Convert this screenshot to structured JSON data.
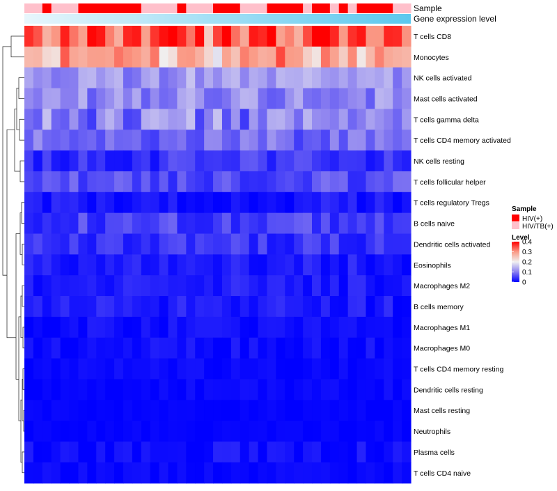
{
  "chart_data": {
    "type": "heatmap",
    "title": "",
    "n_samples": 43,
    "annotation_tracks": [
      {
        "label": "Sample"
      },
      {
        "label": "Gene expression level"
      }
    ],
    "sample_groups": [
      "P",
      "P",
      "H",
      "P",
      "P",
      "P",
      "H",
      "H",
      "H",
      "H",
      "H",
      "H",
      "H",
      "P",
      "P",
      "P",
      "P",
      "H",
      "P",
      "P",
      "P",
      "H",
      "H",
      "H",
      "P",
      "P",
      "P",
      "H",
      "H",
      "H",
      "H",
      "P",
      "H",
      "H",
      "P",
      "H",
      "P",
      "H",
      "H",
      "H",
      "H",
      "P",
      "P"
    ],
    "rows": [
      "T cells CD8",
      "Monocytes",
      "NK cells activated",
      "Mast cells activated",
      "T cells gamma delta",
      "T cells CD4 memory activated",
      "NK cells resting",
      "T cells follicular helper",
      "T cells regulatory  Tregs",
      "B cells naive",
      "Dendritic cells activated",
      "Eosinophils",
      "Macrophages M2",
      "B cells memory",
      "Macrophages M1",
      "Macrophages M0",
      "T cells CD4 memory resting",
      "Dendritic cells resting",
      "Mast cells resting",
      "Neutrophils",
      "Plasma cells",
      "T cells CD4 naive"
    ],
    "row_typical_level": [
      0.33,
      0.26,
      0.12,
      0.11,
      0.1,
      0.08,
      0.04,
      0.06,
      0.02,
      0.05,
      0.04,
      0.02,
      0.02,
      0.02,
      0.01,
      0.01,
      0.005,
      0.005,
      0.003,
      0.003,
      0.01,
      0.005
    ],
    "row_spread": [
      0.07,
      0.07,
      0.04,
      0.04,
      0.06,
      0.04,
      0.03,
      0.03,
      0.02,
      0.03,
      0.025,
      0.02,
      0.02,
      0.02,
      0.015,
      0.015,
      0.01,
      0.01,
      0.005,
      0.005,
      0.02,
      0.01
    ],
    "color_scale": {
      "domain": [
        0,
        0.1,
        0.2,
        0.3,
        0.4
      ],
      "colors": [
        "#0000ff",
        "#8a7ff0",
        "#f0f0f0",
        "#fa9a86",
        "#ff0000"
      ]
    },
    "legend": {
      "sample_title": "Sample",
      "sample_entries": [
        {
          "label": "HIV(+)",
          "color": "#ff0000"
        },
        {
          "label": "HIV/TB(+)",
          "color": "#ffc0cb"
        }
      ],
      "level_title": "Level",
      "level_ticks": [
        "0.4",
        "0.3",
        "0.2",
        "0.1",
        "0"
      ]
    },
    "expression_gradient": [
      "#e8f6fc",
      "#5bc8ee"
    ],
    "dendrogram": "left"
  }
}
